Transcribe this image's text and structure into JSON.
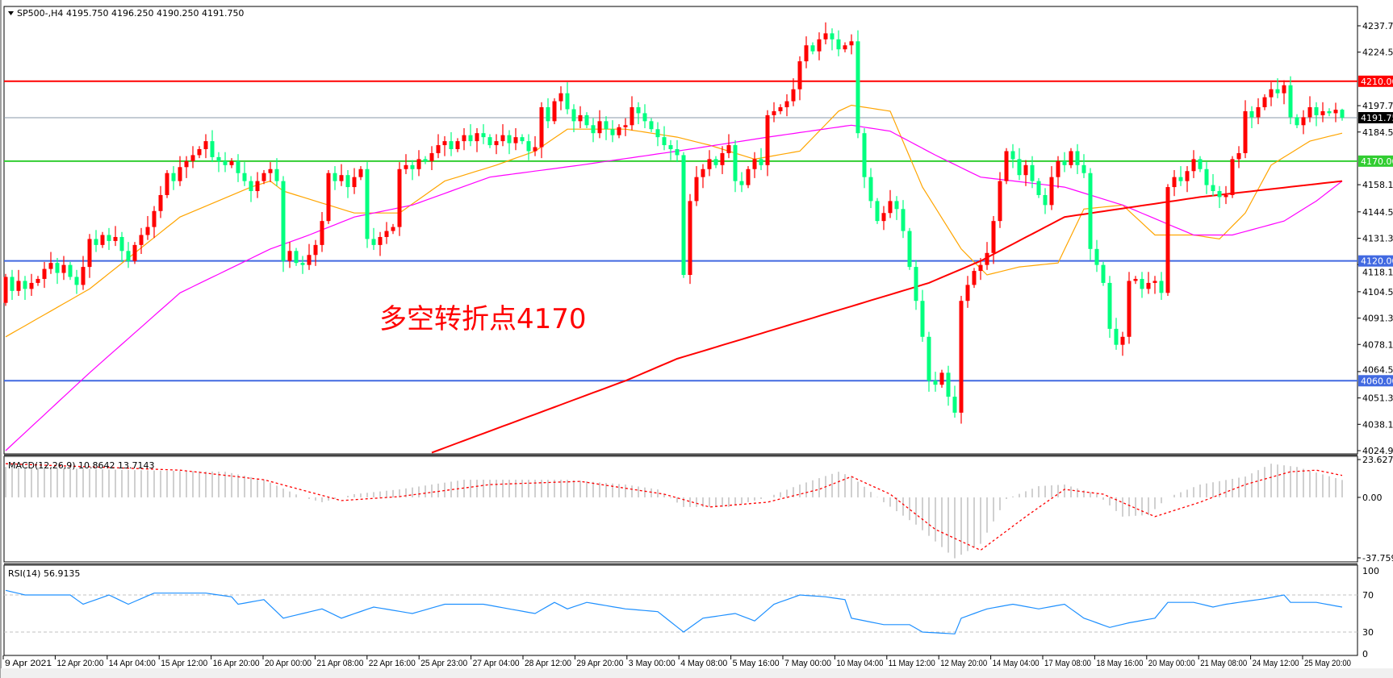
{
  "header": {
    "symbol": "SP500-,H4",
    "ohlc_text": "4195.750 4196.250 4190.250 4191.750"
  },
  "annotation": "多空转折点4170",
  "colors": {
    "bull": "#ff0000",
    "bear": "#00ff7f",
    "ma_fast": "#ffa500",
    "ma_mid": "#ff00ff",
    "ma_slow": "#ff0000",
    "macd_hist": "#c0c0c0",
    "macd_signal": "#ff0000",
    "rsi": "#1e90ff"
  },
  "chart_data": [
    {
      "type": "candlestick",
      "symbol": "SP500-",
      "timeframe": "H4",
      "last_bar": {
        "open": 4195.75,
        "high": 4196.25,
        "low": 4190.25,
        "close": 4191.75
      },
      "ylim": [
        4024.98,
        4237.78
      ],
      "y_ticks": [
        "4237.780",
        "4224.580",
        "4197.780",
        "4184.580",
        "4158.180",
        "4144.580",
        "4131.380",
        "4118.180",
        "4104.580",
        "4091.380",
        "4078.180",
        "4064.580",
        "4051.380",
        "4038.180",
        "4024.980"
      ],
      "open_first": 4099,
      "close": [
        4112,
        4105,
        4110,
        4106,
        4109,
        4111,
        4116,
        4119,
        4114,
        4118,
        4112,
        4108,
        4117,
        4131,
        4128,
        4133,
        4130,
        4132,
        4125,
        4120,
        4128,
        4133,
        4137,
        4145,
        4153,
        4164,
        4160,
        4167,
        4170,
        4173,
        4176,
        4180,
        4172,
        4170,
        4168,
        4170,
        4164,
        4160,
        4155,
        4160,
        4164,
        4166,
        4160,
        4120,
        4125,
        4119,
        4118,
        4123,
        4128,
        4140,
        4164,
        4160,
        4163,
        4157,
        4162,
        4166,
        4131,
        4128,
        4132,
        4135,
        4137,
        4166,
        4168,
        4166,
        4171,
        4170,
        4174,
        4178,
        4180,
        4176,
        4180,
        4183,
        4180,
        4184,
        4182,
        4178,
        4180,
        4183,
        4179,
        4182,
        4180,
        4175,
        4177,
        4197,
        4190,
        4200,
        4204,
        4196,
        4190,
        4193,
        4188,
        4184,
        4190,
        4186,
        4183,
        4187,
        4188,
        4197,
        4194,
        4190,
        4186,
        4182,
        4178,
        4176,
        4173,
        4113,
        4150,
        4162,
        4166,
        4171,
        4168,
        4174,
        4178,
        4160,
        4158,
        4166,
        4171,
        4168,
        4193,
        4195,
        4197,
        4200,
        4206,
        4220,
        4228,
        4225,
        4231,
        4234,
        4231,
        4226,
        4228,
        4230,
        4184,
        4162,
        4150,
        4140,
        4144,
        4150,
        4146,
        4135,
        4117,
        4100,
        4082,
        4060,
        4058,
        4064,
        4052,
        4044,
        4100,
        4108,
        4115,
        4118,
        4124,
        4140,
        4160,
        4175,
        4171,
        4163,
        4168,
        4160,
        4153,
        4148,
        4162,
        4170,
        4168,
        4175,
        4168,
        4164,
        4126,
        4118,
        4109,
        4086,
        4078,
        4082,
        4110,
        4111,
        4106,
        4109,
        4110,
        4104,
        4157,
        4162,
        4160,
        4165,
        4171,
        4166,
        4158,
        4155,
        4152,
        4153,
        4171,
        4174,
        4195,
        4192,
        4197,
        4202,
        4206,
        4204,
        4208,
        4192,
        4188,
        4192,
        4197,
        4193,
        4195,
        4194,
        4195.75,
        4191.75
      ],
      "moving_averages": [
        {
          "role": "fast",
          "points": [
            [
              0,
              4082
            ],
            [
              13,
              4106
            ],
            [
              27,
              4142
            ],
            [
              38,
              4157
            ],
            [
              41,
              4160
            ],
            [
              43,
              4155
            ],
            [
              54,
              4144
            ],
            [
              61,
              4144
            ],
            [
              68,
              4160
            ],
            [
              76,
              4168
            ],
            [
              82,
              4175
            ],
            [
              87,
              4186
            ],
            [
              96,
              4186
            ],
            [
              104,
              4182
            ],
            [
              109,
              4178
            ],
            [
              116,
              4171
            ],
            [
              123,
              4175
            ],
            [
              129,
              4195
            ],
            [
              131,
              4198
            ],
            [
              137,
              4195
            ],
            [
              142,
              4157
            ],
            [
              148,
              4126
            ],
            [
              152,
              4113
            ],
            [
              157,
              4117
            ],
            [
              163,
              4119
            ],
            [
              167,
              4146
            ],
            [
              173,
              4148
            ],
            [
              178,
              4133
            ],
            [
              184,
              4133
            ],
            [
              188,
              4131
            ],
            [
              192,
              4144
            ],
            [
              196,
              4168
            ],
            [
              202,
              4180
            ],
            [
              207,
              4184
            ]
          ]
        },
        {
          "role": "mid",
          "points": [
            [
              0,
              4025
            ],
            [
              13,
              4064
            ],
            [
              27,
              4104
            ],
            [
              41,
              4126
            ],
            [
              47,
              4133
            ],
            [
              54,
              4142
            ],
            [
              63,
              4148
            ],
            [
              75,
              4162
            ],
            [
              89,
              4168
            ],
            [
              104,
              4175
            ],
            [
              118,
              4182
            ],
            [
              131,
              4188
            ],
            [
              137,
              4185
            ],
            [
              144,
              4173
            ],
            [
              151,
              4162
            ],
            [
              164,
              4157
            ],
            [
              173,
              4148
            ],
            [
              184,
              4133
            ],
            [
              190,
              4133
            ],
            [
              198,
              4140
            ],
            [
              203,
              4150
            ],
            [
              207,
              4160
            ]
          ]
        },
        {
          "role": "slow",
          "points": [
            [
              66,
              4024
            ],
            [
              96,
              4060
            ],
            [
              104,
              4071
            ],
            [
              143,
              4109
            ],
            [
              151,
              4120
            ],
            [
              164,
              4142
            ],
            [
              185,
              4152
            ],
            [
              207,
              4160
            ]
          ]
        }
      ],
      "hlines": [
        {
          "value": 4210,
          "label": "4210.000",
          "color": "#ff0000"
        },
        {
          "value": 4191.75,
          "label": "4191.750",
          "color": "#8a9aa8",
          "label_bg": "#000000"
        },
        {
          "value": 4170,
          "label": "4170.000",
          "color": "#32cd32"
        },
        {
          "value": 4120,
          "label": "4120.000",
          "color": "#4169e1"
        },
        {
          "value": 4060,
          "label": "4060.000",
          "color": "#4169e1"
        }
      ],
      "x_labels": [
        "9 Apr 2021",
        "12 Apr 20:00",
        "14 Apr 04:00",
        "15 Apr 12:00",
        "16 Apr 20:00",
        "20 Apr 00:00",
        "21 Apr 08:00",
        "22 Apr 16:00",
        "25 Apr 23:00",
        "27 Apr 04:00",
        "28 Apr 12:00",
        "29 Apr 20:00",
        "3 May 00:00",
        "4 May 08:00",
        "5 May 16:00",
        "7 May 00:00",
        "10 May 04:00",
        "11 May 12:00",
        "12 May 20:00",
        "14 May 04:00",
        "17 May 08:00",
        "18 May 16:00",
        "20 May 00:00",
        "21 May 08:00",
        "24 May 12:00",
        "25 May 20:00"
      ]
    },
    {
      "type": "macd",
      "label": "MACD(12,26,9) 10.8642 13.7143",
      "ylim": [
        -37.7595,
        23.6278
      ],
      "y_ticks": [
        "23.6278",
        "0.00",
        "-37.7595"
      ],
      "histogram_points": [
        [
          0,
          19
        ],
        [
          20,
          17
        ],
        [
          34,
          16
        ],
        [
          40,
          11
        ],
        [
          46,
          0
        ],
        [
          49,
          -3
        ],
        [
          54,
          2
        ],
        [
          61,
          5
        ],
        [
          71,
          11
        ],
        [
          76,
          11
        ],
        [
          87,
          11
        ],
        [
          96,
          8
        ],
        [
          101,
          5
        ],
        [
          105,
          -6
        ],
        [
          112,
          -6
        ],
        [
          118,
          0
        ],
        [
          123,
          8
        ],
        [
          129,
          16
        ],
        [
          131,
          13
        ],
        [
          136,
          -3
        ],
        [
          141,
          -17
        ],
        [
          147,
          -38
        ],
        [
          151,
          -29
        ],
        [
          155,
          -1
        ],
        [
          160,
          7
        ],
        [
          164,
          8
        ],
        [
          169,
          2
        ],
        [
          173,
          -12
        ],
        [
          177,
          -11
        ],
        [
          180,
          0
        ],
        [
          185,
          8
        ],
        [
          192,
          13
        ],
        [
          196,
          21
        ],
        [
          200,
          19
        ],
        [
          207,
          10.8642
        ]
      ],
      "signal_points": [
        [
          0,
          21
        ],
        [
          27,
          17
        ],
        [
          40,
          11
        ],
        [
          52,
          -2
        ],
        [
          61,
          0.5
        ],
        [
          75,
          8
        ],
        [
          89,
          10
        ],
        [
          102,
          2
        ],
        [
          109,
          -6
        ],
        [
          118,
          -3
        ],
        [
          126,
          5
        ],
        [
          131,
          13
        ],
        [
          137,
          2
        ],
        [
          144,
          -20
        ],
        [
          151,
          -33
        ],
        [
          158,
          -12
        ],
        [
          164,
          5
        ],
        [
          170,
          2
        ],
        [
          178,
          -12
        ],
        [
          185,
          -3
        ],
        [
          192,
          8
        ],
        [
          199,
          16
        ],
        [
          203,
          17
        ],
        [
          207,
          13.7143
        ]
      ]
    },
    {
      "type": "line",
      "label": "RSI(14) 56.9135",
      "ylim": [
        0,
        100
      ],
      "y_ticks": [
        "100",
        "70",
        "30",
        "0"
      ],
      "levels": [
        70,
        30
      ],
      "points": [
        [
          0,
          75
        ],
        [
          3,
          70
        ],
        [
          10,
          70
        ],
        [
          12,
          60
        ],
        [
          16,
          70
        ],
        [
          19,
          60
        ],
        [
          23,
          72
        ],
        [
          31,
          72
        ],
        [
          35,
          68
        ],
        [
          36,
          60
        ],
        [
          40,
          65
        ],
        [
          43,
          45
        ],
        [
          46,
          50
        ],
        [
          49,
          55
        ],
        [
          52,
          45
        ],
        [
          57,
          57
        ],
        [
          63,
          50
        ],
        [
          68,
          60
        ],
        [
          74,
          60
        ],
        [
          78,
          55
        ],
        [
          82,
          50
        ],
        [
          85,
          62
        ],
        [
          87,
          55
        ],
        [
          90,
          62
        ],
        [
          96,
          55
        ],
        [
          101,
          52
        ],
        [
          105,
          30
        ],
        [
          108,
          45
        ],
        [
          113,
          50
        ],
        [
          116,
          42
        ],
        [
          119,
          60
        ],
        [
          123,
          70
        ],
        [
          127,
          68
        ],
        [
          130,
          65
        ],
        [
          131,
          45
        ],
        [
          136,
          38
        ],
        [
          140,
          38
        ],
        [
          142,
          30
        ],
        [
          147,
          28
        ],
        [
          148,
          45
        ],
        [
          152,
          55
        ],
        [
          156,
          60
        ],
        [
          160,
          55
        ],
        [
          164,
          60
        ],
        [
          167,
          45
        ],
        [
          171,
          35
        ],
        [
          174,
          40
        ],
        [
          178,
          45
        ],
        [
          180,
          62
        ],
        [
          184,
          62
        ],
        [
          187,
          57
        ],
        [
          189,
          60
        ],
        [
          195,
          66
        ],
        [
          198,
          70
        ],
        [
          199,
          62
        ],
        [
          203,
          62
        ],
        [
          207,
          56.9135
        ]
      ]
    }
  ]
}
